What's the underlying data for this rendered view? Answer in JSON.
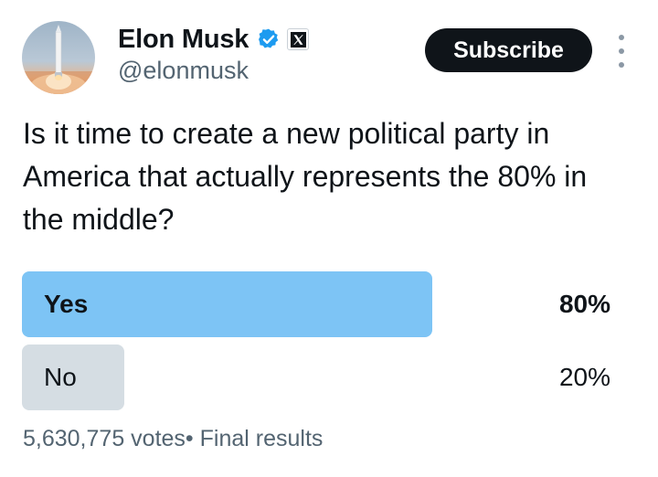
{
  "author": {
    "display_name": "Elon Musk",
    "handle": "@elonmusk",
    "verified": true,
    "affiliate_badge_icon": "x-logo-icon",
    "avatar_icon": "rocket-launch-avatar"
  },
  "actions": {
    "subscribe_label": "Subscribe",
    "more_icon": "more-vertical-icon"
  },
  "tweet": {
    "text": "Is it time to create a new political party in America that actually represents the 80% in the middle?"
  },
  "poll": {
    "options": [
      {
        "label": "Yes",
        "percent_text": "80%",
        "percent": 80,
        "winner": true
      },
      {
        "label": "No",
        "percent_text": "20%",
        "percent": 20,
        "winner": false
      }
    ],
    "votes_text": "5,630,775 votes",
    "separator": "•",
    "status_text": "Final results"
  },
  "colors": {
    "winner_fill": "#7dc4f5",
    "other_fill": "#d5dde3",
    "verified_badge": "#1d9bf0",
    "subscribe_bg": "#0f1419",
    "secondary_text": "#536471"
  }
}
